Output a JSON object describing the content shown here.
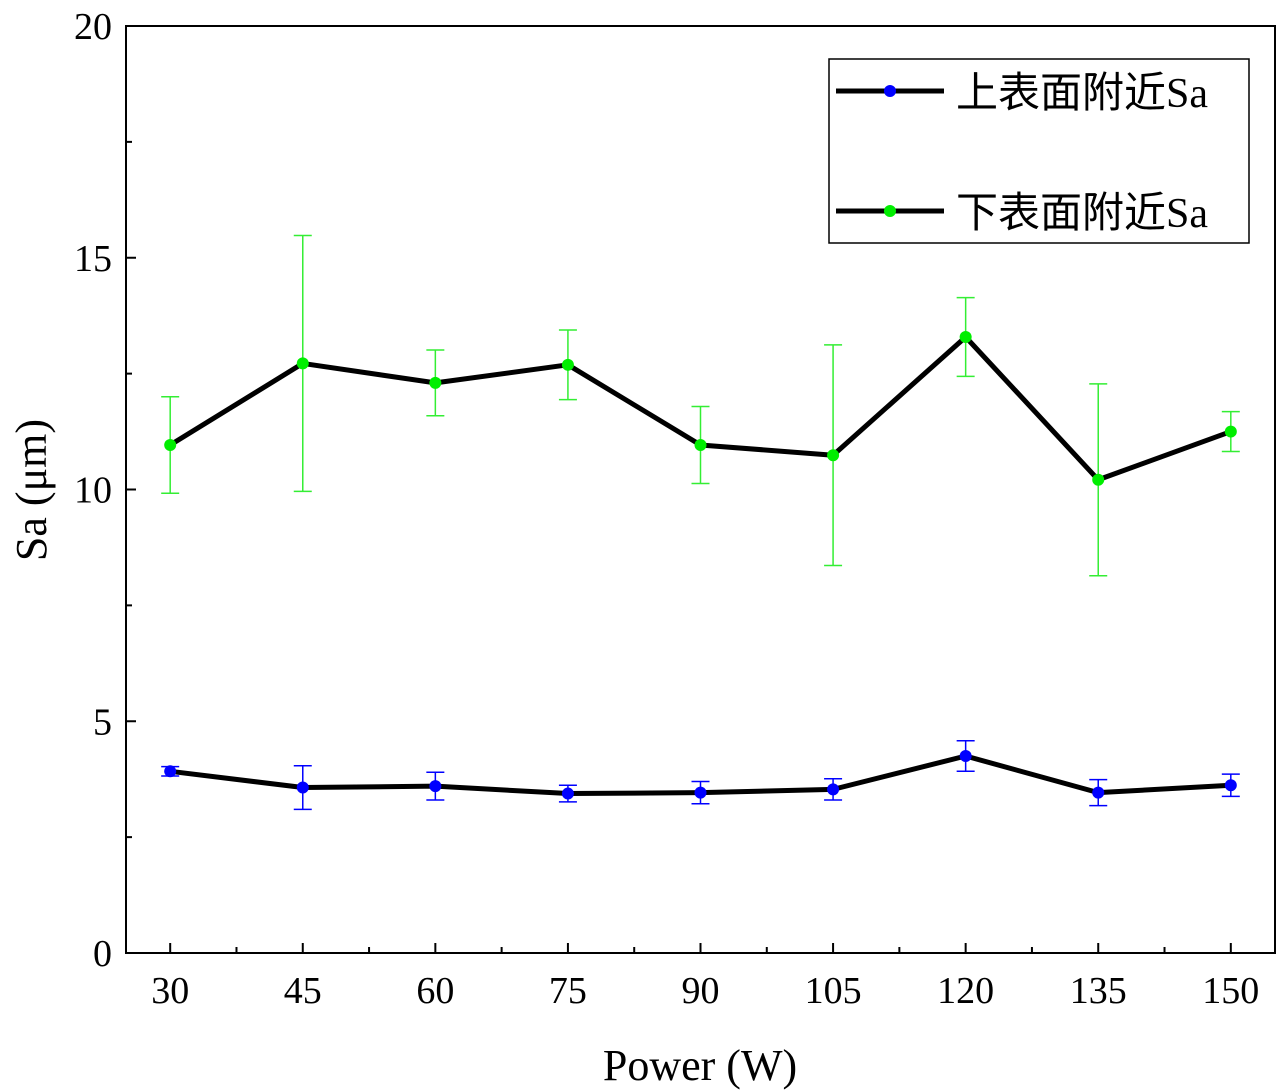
{
  "chart_data": {
    "type": "line",
    "title": "",
    "xlabel": "Power (W)",
    "ylabel": "Sa (μm)",
    "x": [
      30,
      45,
      60,
      75,
      90,
      105,
      120,
      135,
      150
    ],
    "xticks": [
      "30",
      "45",
      "60",
      "75",
      "90",
      "105",
      "120",
      "135",
      "150"
    ],
    "xlim": [
      25,
      155
    ],
    "ylim": [
      0,
      20
    ],
    "yticks": [
      "0",
      "5",
      "10",
      "15",
      "20"
    ],
    "legend_position": "top-right",
    "series": [
      {
        "name": "上表面附近Sa",
        "marker_color": "#0000ff",
        "error_color": "#0000ff",
        "line_color": "#000000",
        "values": [
          3.92,
          3.57,
          3.6,
          3.44,
          3.46,
          3.53,
          4.25,
          3.46,
          3.62
        ],
        "errors": [
          0.1,
          0.47,
          0.3,
          0.18,
          0.24,
          0.23,
          0.33,
          0.28,
          0.24
        ]
      },
      {
        "name": "下表面附近Sa",
        "marker_color": "#00ee00",
        "error_color": "#33ee33",
        "line_color": "#000000",
        "values": [
          10.96,
          12.72,
          12.3,
          12.69,
          10.96,
          10.74,
          13.29,
          10.21,
          11.25
        ],
        "errors": [
          1.04,
          2.76,
          0.71,
          0.75,
          0.83,
          2.38,
          0.85,
          2.07,
          0.43
        ]
      }
    ]
  }
}
